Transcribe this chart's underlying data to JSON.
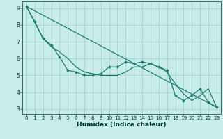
{
  "xlabel": "Humidex (Indice chaleur)",
  "background_color": "#c8ece8",
  "plot_bg_color": "#c8ece8",
  "grid_color": "#99cccc",
  "line_color": "#1a7a6e",
  "xlim": [
    -0.5,
    23.5
  ],
  "ylim": [
    2.7,
    9.4
  ],
  "yticks": [
    3,
    4,
    5,
    6,
    7,
    8,
    9
  ],
  "xticks": [
    0,
    1,
    2,
    3,
    4,
    5,
    6,
    7,
    8,
    9,
    10,
    11,
    12,
    13,
    14,
    15,
    16,
    17,
    18,
    19,
    20,
    21,
    22,
    23
  ],
  "series1_x": [
    0,
    1,
    2,
    3,
    4,
    5,
    6,
    7,
    8,
    9,
    10,
    11,
    12,
    13,
    14,
    15,
    16,
    17,
    18,
    19,
    20,
    21,
    22,
    23
  ],
  "series1_y": [
    9.1,
    8.2,
    7.2,
    6.8,
    6.1,
    5.3,
    5.2,
    5.0,
    5.0,
    5.1,
    5.5,
    5.5,
    5.8,
    5.7,
    5.8,
    5.7,
    5.5,
    5.3,
    3.8,
    3.5,
    3.8,
    4.2,
    3.4,
    3.1
  ],
  "series2_x": [
    0,
    2,
    3,
    4,
    5,
    6,
    7,
    8,
    9,
    10,
    11,
    12,
    13,
    14,
    15,
    16,
    17,
    18,
    19,
    20,
    21,
    22,
    23
  ],
  "series2_y": [
    9.1,
    7.2,
    6.7,
    6.4,
    6.0,
    5.5,
    5.2,
    5.1,
    5.0,
    5.0,
    5.0,
    5.2,
    5.5,
    5.5,
    5.7,
    5.5,
    5.2,
    4.5,
    3.9,
    3.5,
    3.8,
    4.2,
    3.1
  ],
  "series3_x": [
    0,
    23
  ],
  "series3_y": [
    9.1,
    3.1
  ]
}
